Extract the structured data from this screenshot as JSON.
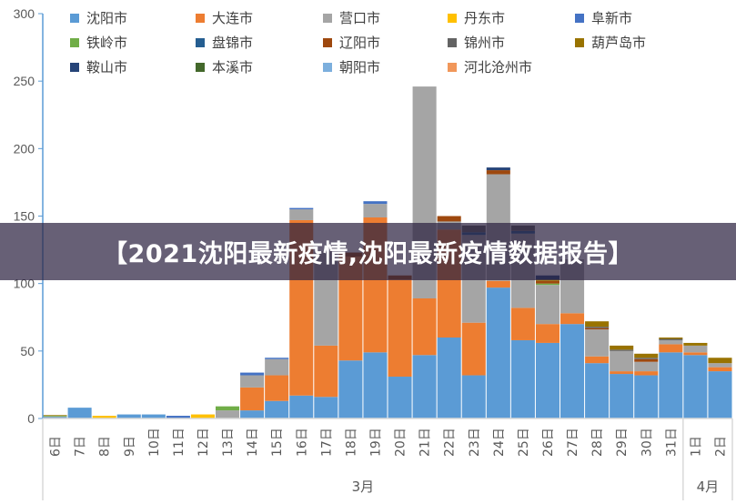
{
  "banner_title": "【2021沈阳最新疫情,沈阳最新疫情数据报告】",
  "chart_data": {
    "type": "bar",
    "stacked": true,
    "title": "",
    "xlabel": "",
    "ylabel": "",
    "ylim": [
      0,
      300
    ],
    "yticks": [
      0,
      50,
      100,
      150,
      200,
      250,
      300
    ],
    "grid": false,
    "legend_position": "top-left",
    "categories": [
      "6日",
      "7日",
      "8日",
      "9日",
      "10日",
      "11日",
      "12日",
      "13日",
      "14日",
      "15日",
      "16日",
      "17日",
      "18日",
      "19日",
      "20日",
      "21日",
      "22日",
      "23日",
      "24日",
      "25日",
      "26日",
      "27日",
      "28日",
      "29日",
      "30日",
      "31日",
      "1日",
      "2日"
    ],
    "month_groups": [
      {
        "label": "3月",
        "count": 26
      },
      {
        "label": "4月",
        "count": 2
      }
    ],
    "series": [
      {
        "name": "沈阳市",
        "color": "#5B9BD5",
        "values": [
          1,
          8,
          0,
          3,
          3,
          0,
          0,
          0,
          6,
          13,
          17,
          16,
          43,
          49,
          31,
          47,
          60,
          32,
          97,
          58,
          56,
          70,
          41,
          33,
          32,
          49,
          47,
          35
        ]
      },
      {
        "name": "大连市",
        "color": "#ED7D31",
        "values": [
          0,
          0,
          0,
          0,
          0,
          0,
          0,
          0,
          17,
          19,
          130,
          38,
          77,
          100,
          72,
          42,
          80,
          39,
          5,
          24,
          14,
          8,
          5,
          2,
          3,
          6,
          2,
          3
        ]
      },
      {
        "name": "营口市",
        "color": "#A5A5A5",
        "values": [
          0.5,
          0,
          0,
          0,
          0,
          0,
          0,
          6,
          9,
          12,
          8,
          70,
          0,
          10,
          0,
          157,
          6,
          65,
          79,
          55,
          29,
          40,
          20,
          15,
          7,
          3,
          5,
          3
        ]
      },
      {
        "name": "丹东市",
        "color": "#FFC000",
        "values": [
          0,
          0,
          2,
          0,
          0,
          0,
          3,
          0,
          0,
          0,
          0,
          0,
          0,
          0,
          0,
          0,
          0,
          0,
          0,
          0,
          0,
          0,
          0,
          0,
          0,
          0,
          0,
          0
        ]
      },
      {
        "name": "阜新市",
        "color": "#4472C4",
        "values": [
          0,
          0,
          0,
          0,
          0,
          2,
          0,
          0,
          2,
          1,
          1,
          0,
          0,
          2,
          0,
          0,
          0,
          0,
          0,
          0,
          0,
          0,
          0,
          0,
          0,
          0,
          0,
          0
        ]
      },
      {
        "name": "铁岭市",
        "color": "#70AD47",
        "values": [
          0.5,
          0,
          0,
          0,
          0,
          0,
          0,
          3,
          0,
          0,
          0,
          0,
          0,
          0,
          0,
          0,
          0,
          0,
          0,
          0,
          1,
          0,
          0,
          0,
          0,
          0,
          0,
          0
        ]
      },
      {
        "name": "盘锦市",
        "color": "#255E91",
        "values": [
          0,
          0,
          0,
          0,
          0,
          0,
          0,
          0,
          0,
          0,
          0,
          0,
          0,
          0,
          0,
          0,
          0,
          2,
          0,
          2,
          0,
          0,
          0,
          0,
          0,
          0,
          0,
          0
        ]
      },
      {
        "name": "辽阳市",
        "color": "#9E480E",
        "values": [
          0,
          0,
          0,
          0,
          0,
          0,
          0,
          0,
          0,
          0,
          0,
          0,
          3,
          0,
          3,
          0,
          4,
          0,
          3,
          0,
          2,
          0,
          1,
          0,
          2,
          0,
          0,
          0
        ]
      },
      {
        "name": "锦州市",
        "color": "#636363",
        "values": [
          0,
          0,
          0,
          0,
          0,
          0,
          0,
          0,
          0,
          0,
          0,
          0,
          0,
          0,
          0,
          0,
          0,
          5,
          0,
          4,
          0,
          0,
          1,
          1,
          1,
          1,
          0,
          0
        ]
      },
      {
        "name": "葫芦岛市",
        "color": "#997300",
        "values": [
          0.5,
          0,
          0,
          0,
          0,
          0,
          0,
          0,
          0,
          0,
          0,
          0,
          0,
          0,
          0,
          0,
          0,
          0,
          0,
          0,
          1,
          0,
          4,
          3,
          3,
          1,
          2,
          4
        ]
      },
      {
        "name": "鞍山市",
        "color": "#264478",
        "values": [
          0,
          0,
          0,
          0,
          0,
          0,
          0,
          0,
          0,
          0,
          0,
          0,
          0,
          0,
          0,
          0,
          0,
          0,
          2,
          0,
          3,
          0,
          0,
          0,
          0,
          0,
          0,
          0
        ]
      },
      {
        "name": "本溪市",
        "color": "#43682B",
        "values": [
          0,
          0,
          0,
          0,
          0,
          0,
          0,
          0,
          0,
          0,
          0,
          0,
          0,
          0,
          0,
          0,
          0,
          0,
          0,
          0,
          0,
          0,
          0,
          0,
          0,
          0,
          0,
          0
        ]
      },
      {
        "name": "朝阳市",
        "color": "#7CAFDD",
        "values": [
          0,
          0,
          0,
          0,
          0,
          0,
          0,
          0,
          0,
          0,
          0,
          0,
          0,
          0,
          0,
          0,
          0,
          0,
          0,
          0,
          0,
          0,
          0,
          0,
          0,
          0,
          0,
          0
        ]
      },
      {
        "name": "河北沧州市",
        "color": "#F1975A",
        "values": [
          0,
          0,
          0,
          0,
          0,
          0,
          0,
          0,
          0,
          0,
          0,
          0,
          0,
          0,
          0,
          0,
          0,
          0,
          0,
          0,
          0,
          0,
          0,
          0,
          0,
          0,
          0,
          0
        ]
      }
    ]
  }
}
